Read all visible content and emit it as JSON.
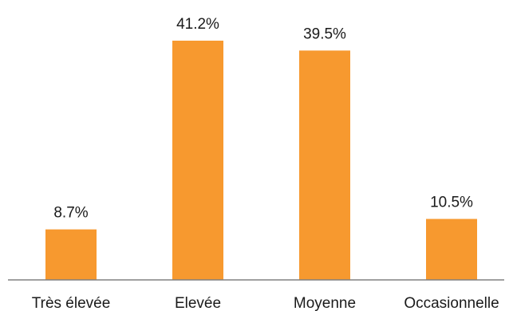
{
  "chart_data": {
    "type": "bar",
    "categories": [
      "Très élevée",
      "Elevée",
      "Moyenne",
      "Occasionnelle"
    ],
    "values": [
      8.7,
      41.2,
      39.5,
      10.5
    ],
    "value_labels": [
      "8.7%",
      "41.2%",
      "39.5%",
      "10.5%"
    ],
    "unit": "%",
    "ylim": [
      0,
      41.2
    ],
    "grid": false,
    "legend": "none",
    "bar_color": "#F7992F",
    "axis_color": "#808080"
  }
}
